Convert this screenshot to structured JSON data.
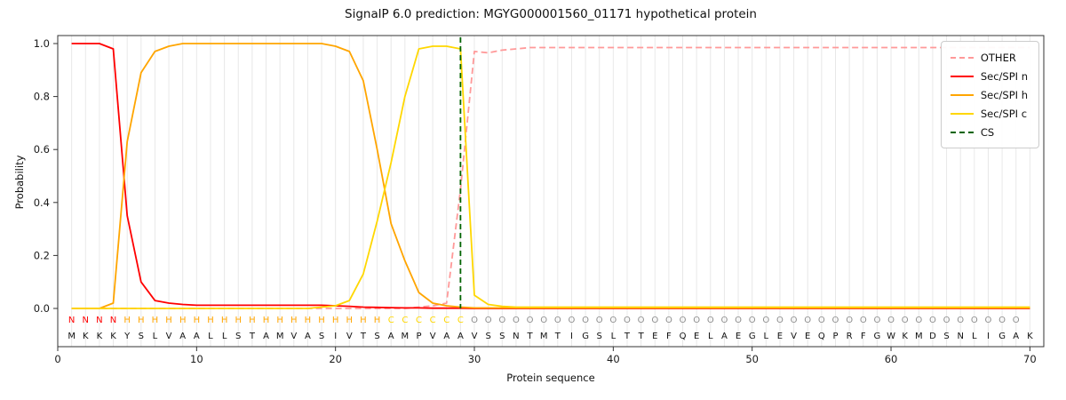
{
  "chart_data": {
    "type": "line",
    "title": "SignalP 6.0 prediction: MGYG000001560_01171 hypothetical protein",
    "xlabel": "Protein sequence",
    "ylabel": "Probability",
    "x_range": [
      1,
      70
    ],
    "xlim": [
      0,
      71
    ],
    "ylim": [
      0,
      1.05
    ],
    "xticks": [
      0,
      10,
      20,
      30,
      40,
      50,
      60,
      70
    ],
    "yticks": [
      0.0,
      0.2,
      0.4,
      0.6,
      0.8,
      1.0
    ],
    "grid": "vertical-per-residue",
    "legend_position": "upper right",
    "cs_position": 29,
    "sequence": "MKKKYSLVAALLSTAMVASIVTSAMPVAAVSSNTMTIGSLTTEFQELAEGLEVEQPRFGWKMDSNLIGAK",
    "region_labels": "NNNNHHHHHHHHHHHHHHHHHHHCCCCCCOOOOOOOOOOOOOOOOOOOOOOOOOOOOOOOOOOOOOOOO",
    "series": [
      {
        "name": "OTHER",
        "color": "#ff9999",
        "dash": true,
        "values": [
          0,
          0,
          0,
          0,
          0,
          0,
          0,
          0,
          0,
          0,
          0,
          0,
          0,
          0,
          0,
          0,
          0,
          0,
          0,
          0,
          0,
          0,
          0,
          0,
          0,
          0.005,
          0.01,
          0.02,
          0.45,
          0.97,
          0.965,
          0.975,
          0.98,
          0.985,
          0.985,
          0.985,
          0.985,
          0.985,
          0.985,
          0.985,
          0.985,
          0.985,
          0.985,
          0.985,
          0.985,
          0.985,
          0.985,
          0.985,
          0.985,
          0.985,
          0.985,
          0.985,
          0.985,
          0.985,
          0.985,
          0.985,
          0.985,
          0.985,
          0.985,
          0.985,
          0.985,
          0.985,
          0.985,
          0.985,
          0.985,
          0.985,
          0.985,
          0.985,
          0.985,
          0.985
        ]
      },
      {
        "name": "Sec/SPI n",
        "color": "#ff0000",
        "dash": false,
        "values": [
          1.0,
          1.0,
          1.0,
          0.98,
          0.35,
          0.1,
          0.03,
          0.02,
          0.015,
          0.012,
          0.012,
          0.012,
          0.012,
          0.012,
          0.012,
          0.012,
          0.012,
          0.012,
          0.012,
          0.01,
          0.008,
          0.005,
          0.004,
          0.003,
          0.002,
          0.002,
          0.001,
          0.001,
          0.001,
          0,
          0,
          0,
          0,
          0,
          0,
          0,
          0,
          0,
          0,
          0,
          0,
          0,
          0,
          0,
          0,
          0,
          0,
          0,
          0,
          0,
          0,
          0,
          0,
          0,
          0,
          0,
          0,
          0,
          0,
          0,
          0,
          0,
          0,
          0,
          0,
          0,
          0,
          0,
          0,
          0
        ]
      },
      {
        "name": "Sec/SPI h",
        "color": "#ffa500",
        "dash": false,
        "values": [
          0,
          0,
          0,
          0.02,
          0.63,
          0.89,
          0.97,
          0.99,
          1.0,
          1.0,
          1.0,
          1.0,
          1.0,
          1.0,
          1.0,
          1.0,
          1.0,
          1.0,
          1.0,
          0.99,
          0.97,
          0.86,
          0.6,
          0.32,
          0.18,
          0.06,
          0.02,
          0.01,
          0.005,
          0.002,
          0.002,
          0.002,
          0.002,
          0.002,
          0.002,
          0.002,
          0.002,
          0.002,
          0.002,
          0.002,
          0.002,
          0.002,
          0.002,
          0.002,
          0.002,
          0.002,
          0.002,
          0.002,
          0.002,
          0.002,
          0.002,
          0.002,
          0.002,
          0.002,
          0.002,
          0.002,
          0.002,
          0.002,
          0.002,
          0.002,
          0.002,
          0.002,
          0.002,
          0.002,
          0.002,
          0.002,
          0.002,
          0.002,
          0.002,
          0.002
        ]
      },
      {
        "name": "Sec/SPI c",
        "color": "#ffd700",
        "dash": false,
        "values": [
          0,
          0,
          0,
          0,
          0,
          0,
          0,
          0,
          0,
          0,
          0,
          0,
          0,
          0,
          0,
          0,
          0,
          0,
          0.005,
          0.01,
          0.03,
          0.13,
          0.33,
          0.55,
          0.8,
          0.98,
          0.99,
          0.99,
          0.98,
          0.05,
          0.015,
          0.008,
          0.005,
          0.005,
          0.005,
          0.005,
          0.005,
          0.005,
          0.005,
          0.005,
          0.005,
          0.005,
          0.005,
          0.005,
          0.005,
          0.005,
          0.005,
          0.005,
          0.005,
          0.005,
          0.005,
          0.005,
          0.005,
          0.005,
          0.005,
          0.005,
          0.005,
          0.005,
          0.005,
          0.005,
          0.005,
          0.005,
          0.005,
          0.005,
          0.005,
          0.005,
          0.005,
          0.005,
          0.005,
          0.005
        ]
      }
    ],
    "legend": [
      {
        "label": "OTHER",
        "color": "#ff9999",
        "dash": true
      },
      {
        "label": "Sec/SPI n",
        "color": "#ff0000",
        "dash": false
      },
      {
        "label": "Sec/SPI h",
        "color": "#ffa500",
        "dash": false
      },
      {
        "label": "Sec/SPI c",
        "color": "#ffd700",
        "dash": false
      },
      {
        "label": "CS",
        "color": "#006400",
        "dash": true
      }
    ],
    "colors": {
      "grid": "#e8e8e8",
      "axes": "#333333",
      "cs": "#006400",
      "sequence_text": "#111111",
      "regions": {
        "N": "#ff0000",
        "H": "#ffa500",
        "C": "#ffd700",
        "O": "#8f8f8f"
      }
    }
  }
}
